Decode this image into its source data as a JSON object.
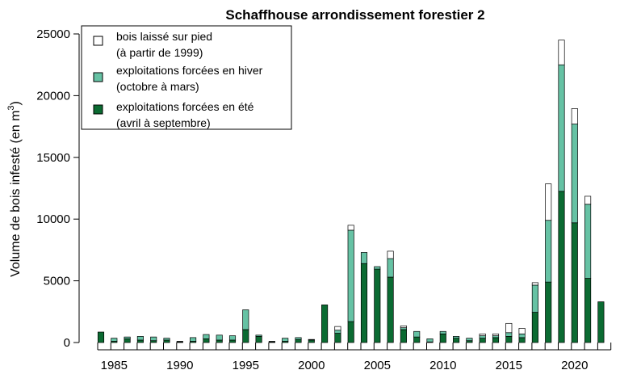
{
  "chart_data": {
    "type": "bar",
    "stacked": true,
    "title": "Schaffhouse arrondissement forestier 2",
    "xlabel": "",
    "ylabel_main": "Volume de bois infesté (en m",
    "ylabel_sup": "3",
    "ylabel_tail": ")",
    "ylim": [
      0,
      25000
    ],
    "yticks": [
      0,
      5000,
      10000,
      15000,
      20000,
      25000
    ],
    "ytick_labels": [
      "0",
      "5000",
      "10000",
      "15000",
      "20000",
      "25000"
    ],
    "xtick_values": [
      1985,
      1990,
      1995,
      2000,
      2005,
      2010,
      2015,
      2020
    ],
    "xtick_labels": [
      "1985",
      "1990",
      "1995",
      "2000",
      "2005",
      "2010",
      "2015",
      "2020"
    ],
    "years": [
      1984,
      1985,
      1986,
      1987,
      1988,
      1989,
      1990,
      1991,
      1992,
      1993,
      1994,
      1995,
      1996,
      1997,
      1998,
      1999,
      2000,
      2001,
      2002,
      2003,
      2004,
      2005,
      2006,
      2007,
      2008,
      2009,
      2010,
      2011,
      2012,
      2013,
      2014,
      2015,
      2016,
      2017,
      2018,
      2019,
      2020,
      2021,
      2022
    ],
    "series": [
      {
        "name": "exploitations forcées en été (avril à septembre)",
        "color": "#0b6b32",
        "values": [
          850,
          100,
          300,
          200,
          150,
          200,
          50,
          100,
          300,
          200,
          200,
          1050,
          500,
          50,
          100,
          250,
          200,
          3050,
          750,
          1700,
          6400,
          5950,
          5300,
          1050,
          450,
          50,
          700,
          350,
          150,
          350,
          400,
          500,
          400,
          2450,
          4900,
          12250,
          9700,
          5200,
          3300
        ]
      },
      {
        "name": "exploitations forcées en hiver (octobre à mars)",
        "color": "#66c2a4",
        "values": [
          0,
          250,
          150,
          300,
          300,
          150,
          50,
          300,
          350,
          400,
          350,
          1600,
          100,
          50,
          250,
          150,
          50,
          0,
          250,
          7400,
          900,
          200,
          1500,
          150,
          450,
          250,
          200,
          150,
          200,
          200,
          150,
          300,
          300,
          2200,
          5000,
          10250,
          8000,
          6000,
          0
        ]
      },
      {
        "name": "bois laissé sur pied (à partir de 1999)",
        "color": "#ffffff",
        "values": [
          0,
          0,
          0,
          0,
          0,
          0,
          0,
          0,
          0,
          0,
          0,
          0,
          0,
          0,
          0,
          0,
          0,
          0,
          300,
          400,
          0,
          0,
          600,
          150,
          0,
          0,
          0,
          0,
          0,
          150,
          150,
          750,
          450,
          200,
          2950,
          2000,
          1250,
          650,
          0
        ]
      }
    ],
    "legend": {
      "position": "top-left",
      "entries": [
        {
          "line1": "bois laissé sur pied",
          "line2": "(à partir de 1999)",
          "color": "#ffffff"
        },
        {
          "line1": "exploitations forcées en hiver",
          "line2": "(octobre à mars)",
          "color": "#66c2a4"
        },
        {
          "line1": "exploitations forcées en été",
          "line2": "(avril à septembre)",
          "color": "#0b6b32"
        }
      ]
    },
    "grid": false
  }
}
